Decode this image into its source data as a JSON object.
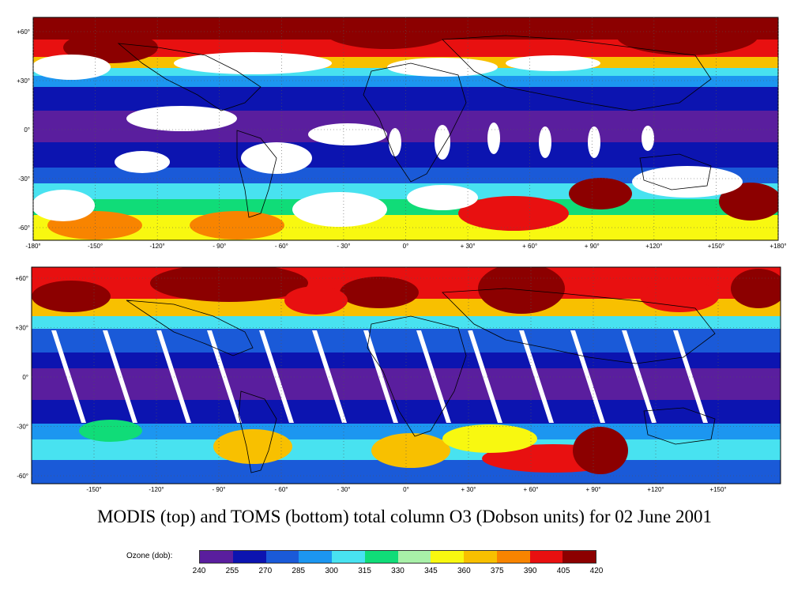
{
  "caption": "MODIS (top) and TOMS (bottom) total column O3 (Dobson units) for 02 June 2001",
  "maps": {
    "modis": {
      "lon_ticks": [
        "-180°",
        "-150°",
        "-120°",
        "- 90°",
        "- 60°",
        "- 30°",
        "0°",
        "+ 30°",
        "+ 60°",
        "+ 90°",
        "+120°",
        "+150°",
        "+180°"
      ],
      "lat_ticks": [
        "+60°",
        "+30°",
        "0°",
        "-30°",
        "-60°"
      ]
    },
    "toms": {
      "lon_ticks": [
        "-150°",
        "-120°",
        "- 90°",
        "- 60°",
        "- 30°",
        "0°",
        "+ 30°",
        "+ 60°",
        "+ 90°",
        "+120°",
        "+150°"
      ],
      "lat_ticks": [
        "+60°",
        "+30°",
        "0°",
        "-30°",
        "-60°"
      ]
    }
  },
  "legend": {
    "title": "Ozone (dob):",
    "ticks": [
      "240",
      "255",
      "270",
      "285",
      "300",
      "315",
      "330",
      "345",
      "360",
      "375",
      "390",
      "405",
      "420"
    ],
    "colors": [
      "#5a1e9e",
      "#0c14b0",
      "#1a5ad8",
      "#1c96f0",
      "#48e2f0",
      "#10dc78",
      "#a8f0a8",
      "#f8f810",
      "#f8c000",
      "#f88400",
      "#e81010",
      "#8c0000"
    ]
  },
  "palette": {
    "low": "#5a1e9e",
    "deep_blue": "#0c14b0",
    "blue": "#1a5ad8",
    "sky": "#1c96f0",
    "cyan": "#48e2f0",
    "green": "#10dc78",
    "pale_green": "#a8f0a8",
    "yellow": "#f8f810",
    "gold": "#f8c000",
    "orange": "#f88400",
    "red": "#e81010",
    "maroon": "#8c0000"
  }
}
